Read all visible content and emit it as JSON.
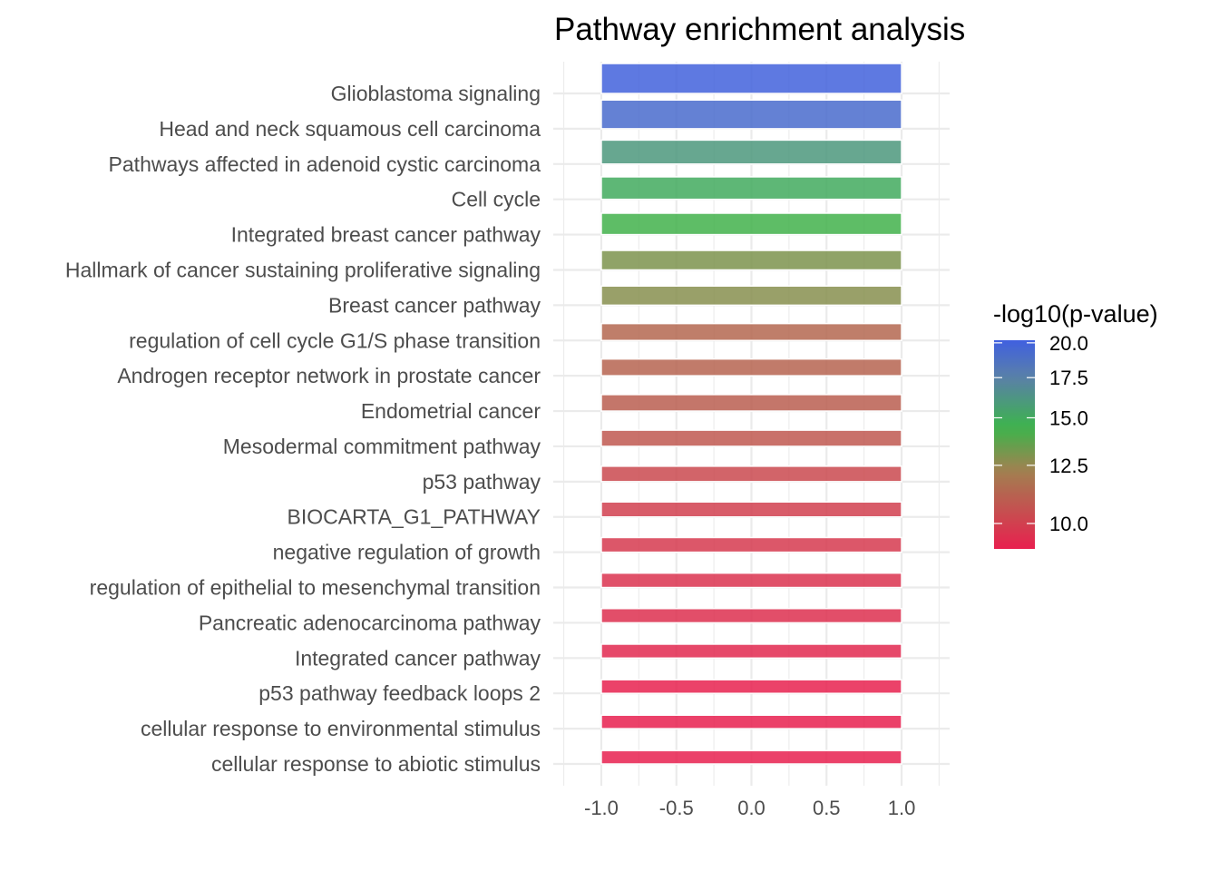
{
  "chart_data": {
    "type": "bar",
    "orientation": "horizontal",
    "title": "Pathway enrichment analysis",
    "xlabel": "",
    "ylabel": "",
    "xlim": [
      -1.32,
      1.32
    ],
    "x_ticks": [
      "-1.0",
      "-0.5",
      "0.0",
      "0.5",
      "1.0"
    ],
    "x_tick_values": [
      -1,
      -0.5,
      0,
      0.5,
      1
    ],
    "grid": true,
    "bar_range": [
      -1,
      1
    ],
    "bar_height_encodes": "-log10(p-value)",
    "categories": [
      "Glioblastoma signaling",
      "Head and neck squamous cell carcinoma",
      "Pathways affected in adenoid cystic carcinoma",
      "Cell cycle",
      "Integrated breast cancer pathway",
      "Hallmark of cancer sustaining proliferative signaling",
      "Breast cancer pathway",
      "regulation of cell cycle G1/S phase transition",
      "Androgen receptor network in prostate cancer",
      "Endometrial cancer",
      "Mesodermal commitment pathway",
      "p53 pathway",
      "BIOCARTA_G1_PATHWAY",
      "negative regulation of growth",
      "regulation of epithelial to mesenchymal transition",
      "Pancreatic adenocarcinoma pathway",
      "Integrated cancer pathway",
      "p53 pathway feedback loops 2",
      "cellular response to environmental stimulus",
      "cellular response to abiotic stimulus"
    ],
    "values": [
      20.0,
      19.2,
      16.0,
      15.0,
      14.3,
      13.0,
      12.8,
      11.3,
      11.2,
      11.0,
      10.8,
      10.3,
      10.0,
      9.8,
      9.6,
      9.5,
      9.3,
      9.1,
      9.0,
      8.9
    ],
    "legend": {
      "title": "-log10(p-value)",
      "placement": "right",
      "scale": "log",
      "range": [
        9.07,
        20.2
      ],
      "ticks": [
        "20.0",
        "17.5",
        "15.0",
        "12.5",
        "10.0"
      ],
      "tick_values": [
        20,
        17.5,
        15,
        12.5,
        10
      ],
      "colors": {
        "low": "#e8204f",
        "mid_low": "#a08250",
        "mid": "#3cb44b",
        "mid_high": "#5a80a8",
        "high": "#4060e0"
      }
    }
  }
}
